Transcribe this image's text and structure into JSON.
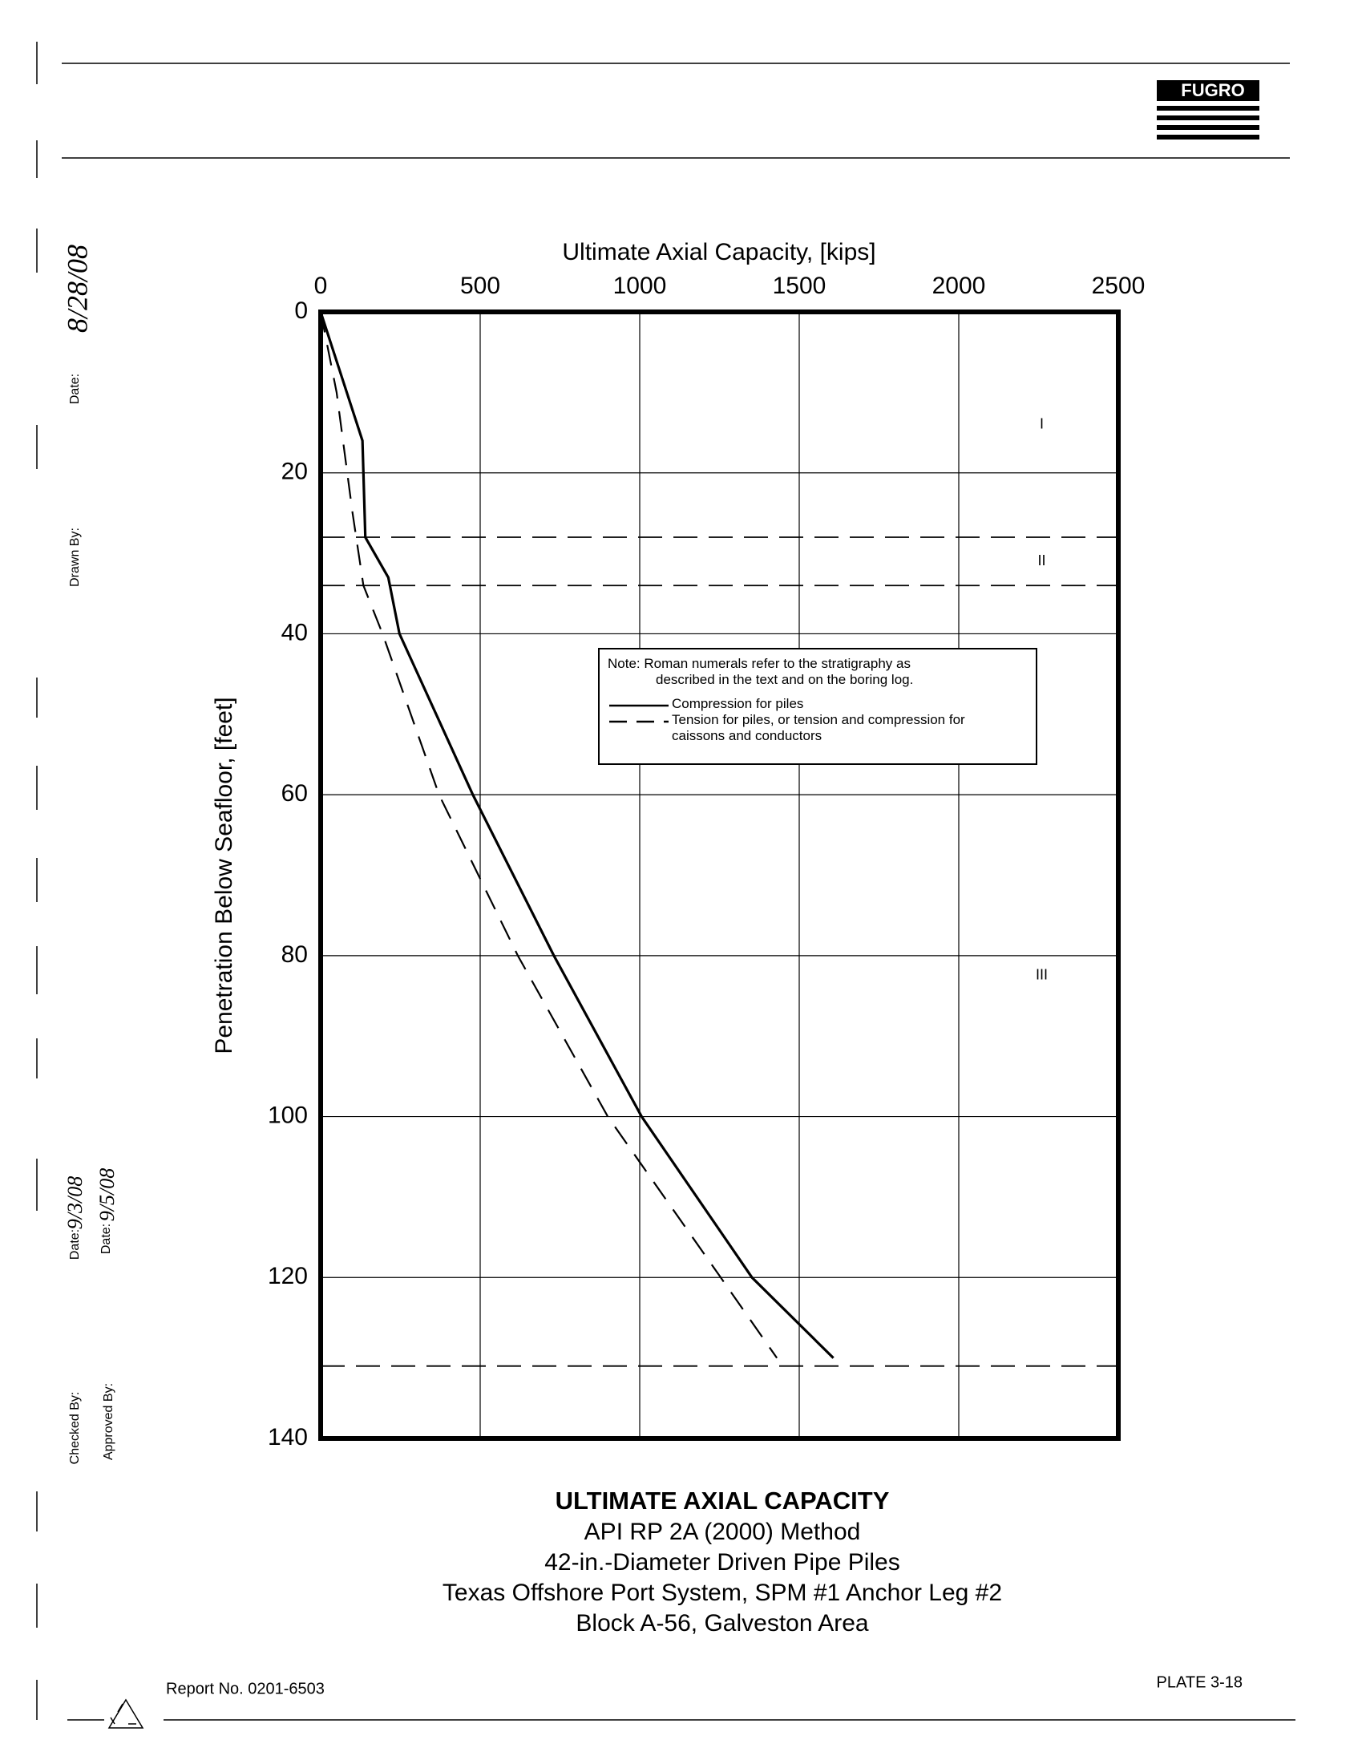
{
  "header": {
    "logo": "FUGRO"
  },
  "signoff": {
    "date_label_1": "Date:",
    "date_1": "8/28/08",
    "drawn_by_label": "Drawn By:",
    "date_label_2": "Date:",
    "date_2": "9/3/08",
    "date_label_3": "Date:",
    "date_3": "9/5/08",
    "checked_by_label": "Checked By:",
    "approved_by_label": "Approved By:"
  },
  "chart_data": {
    "type": "line",
    "xlabel": "Ultimate Axial Capacity, [kips]",
    "ylabel": "Penetration Below Seafloor, [feet]",
    "xlim": [
      0,
      2500
    ],
    "xticks": [
      0,
      500,
      1000,
      1500,
      2000,
      2500
    ],
    "ylim": [
      0,
      140
    ],
    "yticks": [
      0,
      20,
      40,
      60,
      80,
      100,
      120,
      140
    ],
    "y_inverted": true,
    "x_axis_position": "top",
    "grid": true,
    "series": [
      {
        "name": "Compression for piles",
        "style": "solid",
        "color": "#000000",
        "x": [
          0,
          131,
          140,
          212,
          247,
          477,
          731,
          1006,
          1352,
          1607
        ],
        "y": [
          0,
          16,
          28,
          33,
          40,
          60,
          80,
          100,
          120,
          130
        ]
      },
      {
        "name": "Tension for piles, or tension and compression for caissons and conductors",
        "style": "dashed",
        "color": "#000000",
        "x": [
          0,
          50,
          100,
          134,
          194,
          371,
          618,
          900,
          1254,
          1430
        ],
        "y": [
          0,
          10,
          25,
          34,
          40,
          60,
          80,
          100,
          120,
          130
        ]
      }
    ],
    "note": [
      "Note:  Roman numerals refer to the stratigraphy as",
      "described in the text and on the boring log."
    ],
    "strata": {
      "labels": [
        "I",
        "II",
        "III"
      ],
      "boundaries": [
        28,
        34,
        131
      ]
    },
    "title": "ULTIMATE AXIAL CAPACITY",
    "subtitle": [
      "API RP 2A (2000) Method",
      "42-in.-Diameter Driven Pipe Piles",
      "Texas Offshore Port System, SPM #1 Anchor Leg #2",
      "Block A-56, Galveston Area"
    ]
  },
  "footer": {
    "report": "Report No. 0201-6503",
    "plate": "PLATE 3-18"
  }
}
